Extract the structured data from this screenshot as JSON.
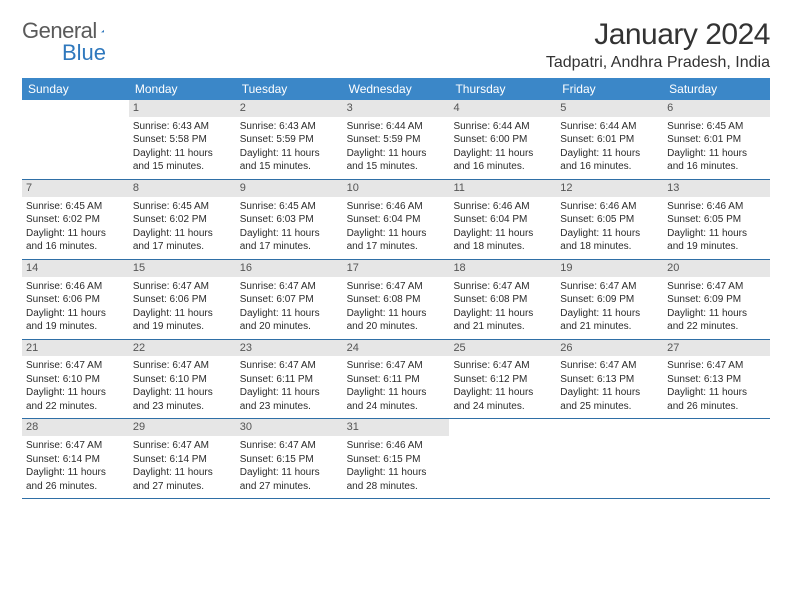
{
  "logo": {
    "text1": "General",
    "text2": "Blue"
  },
  "title": "January 2024",
  "location": "Tadpatri, Andhra Pradesh, India",
  "colors": {
    "header_bg": "#3b87c8",
    "header_text": "#ffffff",
    "daynum_bg": "#e6e6e6",
    "daynum_text": "#555555",
    "border": "#2f6fa6",
    "body_text": "#2b2b2b",
    "logo_gray": "#5a5a5a",
    "logo_blue": "#2f78bd"
  },
  "dow": [
    "Sunday",
    "Monday",
    "Tuesday",
    "Wednesday",
    "Thursday",
    "Friday",
    "Saturday"
  ],
  "weeks": [
    [
      {
        "n": "",
        "empty": true
      },
      {
        "n": "1",
        "sr": "6:43 AM",
        "ss": "5:58 PM",
        "dl": "11 hours and 15 minutes."
      },
      {
        "n": "2",
        "sr": "6:43 AM",
        "ss": "5:59 PM",
        "dl": "11 hours and 15 minutes."
      },
      {
        "n": "3",
        "sr": "6:44 AM",
        "ss": "5:59 PM",
        "dl": "11 hours and 15 minutes."
      },
      {
        "n": "4",
        "sr": "6:44 AM",
        "ss": "6:00 PM",
        "dl": "11 hours and 16 minutes."
      },
      {
        "n": "5",
        "sr": "6:44 AM",
        "ss": "6:01 PM",
        "dl": "11 hours and 16 minutes."
      },
      {
        "n": "6",
        "sr": "6:45 AM",
        "ss": "6:01 PM",
        "dl": "11 hours and 16 minutes."
      }
    ],
    [
      {
        "n": "7",
        "sr": "6:45 AM",
        "ss": "6:02 PM",
        "dl": "11 hours and 16 minutes."
      },
      {
        "n": "8",
        "sr": "6:45 AM",
        "ss": "6:02 PM",
        "dl": "11 hours and 17 minutes."
      },
      {
        "n": "9",
        "sr": "6:45 AM",
        "ss": "6:03 PM",
        "dl": "11 hours and 17 minutes."
      },
      {
        "n": "10",
        "sr": "6:46 AM",
        "ss": "6:04 PM",
        "dl": "11 hours and 17 minutes."
      },
      {
        "n": "11",
        "sr": "6:46 AM",
        "ss": "6:04 PM",
        "dl": "11 hours and 18 minutes."
      },
      {
        "n": "12",
        "sr": "6:46 AM",
        "ss": "6:05 PM",
        "dl": "11 hours and 18 minutes."
      },
      {
        "n": "13",
        "sr": "6:46 AM",
        "ss": "6:05 PM",
        "dl": "11 hours and 19 minutes."
      }
    ],
    [
      {
        "n": "14",
        "sr": "6:46 AM",
        "ss": "6:06 PM",
        "dl": "11 hours and 19 minutes."
      },
      {
        "n": "15",
        "sr": "6:47 AM",
        "ss": "6:06 PM",
        "dl": "11 hours and 19 minutes."
      },
      {
        "n": "16",
        "sr": "6:47 AM",
        "ss": "6:07 PM",
        "dl": "11 hours and 20 minutes."
      },
      {
        "n": "17",
        "sr": "6:47 AM",
        "ss": "6:08 PM",
        "dl": "11 hours and 20 minutes."
      },
      {
        "n": "18",
        "sr": "6:47 AM",
        "ss": "6:08 PM",
        "dl": "11 hours and 21 minutes."
      },
      {
        "n": "19",
        "sr": "6:47 AM",
        "ss": "6:09 PM",
        "dl": "11 hours and 21 minutes."
      },
      {
        "n": "20",
        "sr": "6:47 AM",
        "ss": "6:09 PM",
        "dl": "11 hours and 22 minutes."
      }
    ],
    [
      {
        "n": "21",
        "sr": "6:47 AM",
        "ss": "6:10 PM",
        "dl": "11 hours and 22 minutes."
      },
      {
        "n": "22",
        "sr": "6:47 AM",
        "ss": "6:10 PM",
        "dl": "11 hours and 23 minutes."
      },
      {
        "n": "23",
        "sr": "6:47 AM",
        "ss": "6:11 PM",
        "dl": "11 hours and 23 minutes."
      },
      {
        "n": "24",
        "sr": "6:47 AM",
        "ss": "6:11 PM",
        "dl": "11 hours and 24 minutes."
      },
      {
        "n": "25",
        "sr": "6:47 AM",
        "ss": "6:12 PM",
        "dl": "11 hours and 24 minutes."
      },
      {
        "n": "26",
        "sr": "6:47 AM",
        "ss": "6:13 PM",
        "dl": "11 hours and 25 minutes."
      },
      {
        "n": "27",
        "sr": "6:47 AM",
        "ss": "6:13 PM",
        "dl": "11 hours and 26 minutes."
      }
    ],
    [
      {
        "n": "28",
        "sr": "6:47 AM",
        "ss": "6:14 PM",
        "dl": "11 hours and 26 minutes."
      },
      {
        "n": "29",
        "sr": "6:47 AM",
        "ss": "6:14 PM",
        "dl": "11 hours and 27 minutes."
      },
      {
        "n": "30",
        "sr": "6:47 AM",
        "ss": "6:15 PM",
        "dl": "11 hours and 27 minutes."
      },
      {
        "n": "31",
        "sr": "6:46 AM",
        "ss": "6:15 PM",
        "dl": "11 hours and 28 minutes."
      },
      {
        "n": "",
        "empty": true
      },
      {
        "n": "",
        "empty": true
      },
      {
        "n": "",
        "empty": true
      }
    ]
  ],
  "labels": {
    "sunrise": "Sunrise:",
    "sunset": "Sunset:",
    "daylight": "Daylight:"
  }
}
